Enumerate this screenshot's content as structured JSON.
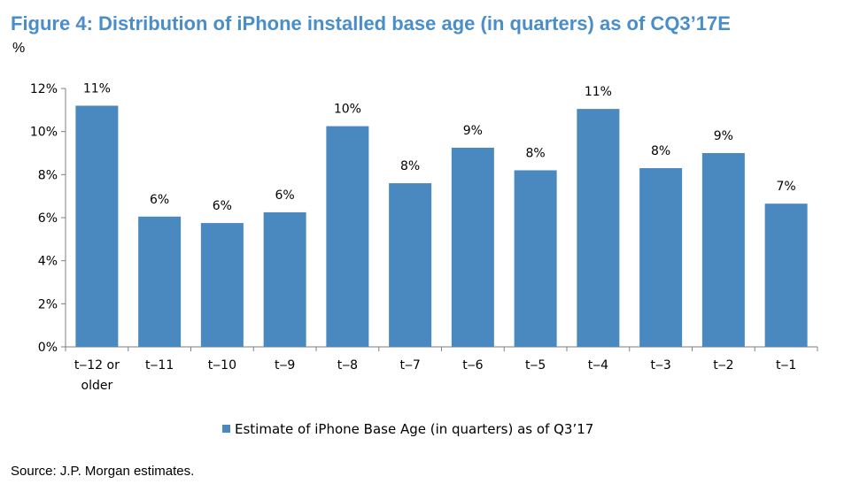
{
  "figure": {
    "title": "Figure 4: Distribution of iPhone installed base age (in quarters) as of CQ3’17E",
    "unit": "%",
    "source": "Source: J.P. Morgan estimates."
  },
  "chart_data": {
    "type": "bar",
    "title": "Figure 4: Distribution of iPhone installed base age (in quarters) as of CQ3’17E",
    "xlabel": "",
    "ylabel": "%",
    "categories": [
      "t-12 or older",
      "t-11",
      "t-10",
      "t-9",
      "t-8",
      "t-7",
      "t-6",
      "t-5",
      "t-4",
      "t-3",
      "t-2",
      "t-1"
    ],
    "category_lines": [
      [
        "t‒12 or",
        "older"
      ],
      [
        "t‒11"
      ],
      [
        "t‒10"
      ],
      [
        "t‒9"
      ],
      [
        "t‒8"
      ],
      [
        "t‒7"
      ],
      [
        "t‒6"
      ],
      [
        "t‒5"
      ],
      [
        "t‒4"
      ],
      [
        "t‒3"
      ],
      [
        "t‒2"
      ],
      [
        "t‒1"
      ]
    ],
    "series": [
      {
        "name": "Estimate of iPhone Base Age (in quarters) as of Q3’17",
        "values": [
          11.2,
          6.05,
          5.75,
          6.25,
          10.25,
          7.6,
          9.25,
          8.2,
          11.05,
          8.3,
          9.0,
          6.65
        ],
        "labels": [
          "11%",
          "6%",
          "6%",
          "6%",
          "10%",
          "8%",
          "9%",
          "8%",
          "11%",
          "8%",
          "9%",
          "7%"
        ],
        "color": "#4a89bf"
      }
    ],
    "ylim": [
      0,
      12
    ],
    "yticks": [
      0,
      2,
      4,
      6,
      8,
      10,
      12
    ],
    "ytick_labels": [
      "0%",
      "2%",
      "4%",
      "6%",
      "8%",
      "10%",
      "12%"
    ],
    "grid": false,
    "legend_position": "bottom-center"
  }
}
